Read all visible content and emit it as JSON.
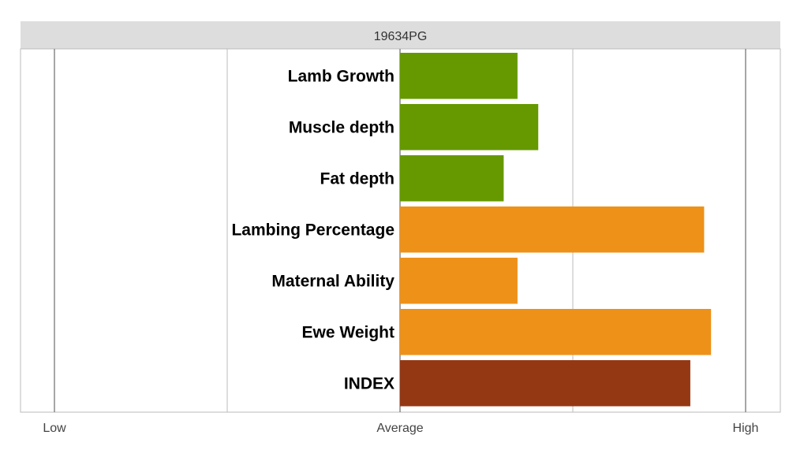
{
  "chart_data": {
    "type": "bar",
    "orientation": "horizontal",
    "title": "19634PG",
    "categories": [
      "Lamb Growth",
      "Muscle depth",
      "Fat depth",
      "Lambing Percentage",
      "Maternal Ability",
      "Ewe Weight",
      "INDEX"
    ],
    "values": [
      0.34,
      0.4,
      0.3,
      0.88,
      0.34,
      0.9,
      0.84
    ],
    "colors": [
      "#669900",
      "#669900",
      "#669900",
      "#ee9119",
      "#ee9119",
      "#ee9119",
      "#943813"
    ],
    "xlim": [
      -1,
      1
    ],
    "ticks": [
      {
        "value": -1,
        "label": "Low"
      },
      {
        "value": 0,
        "label": "Average"
      },
      {
        "value": 1,
        "label": "High"
      }
    ],
    "minor_gridlines": [
      -0.5,
      0.5
    ],
    "grid": true,
    "legend": "none",
    "title_bar_color": "#dddddd",
    "gridline_color": "#888888",
    "minor_gridline_color": "#bbbbbb"
  }
}
